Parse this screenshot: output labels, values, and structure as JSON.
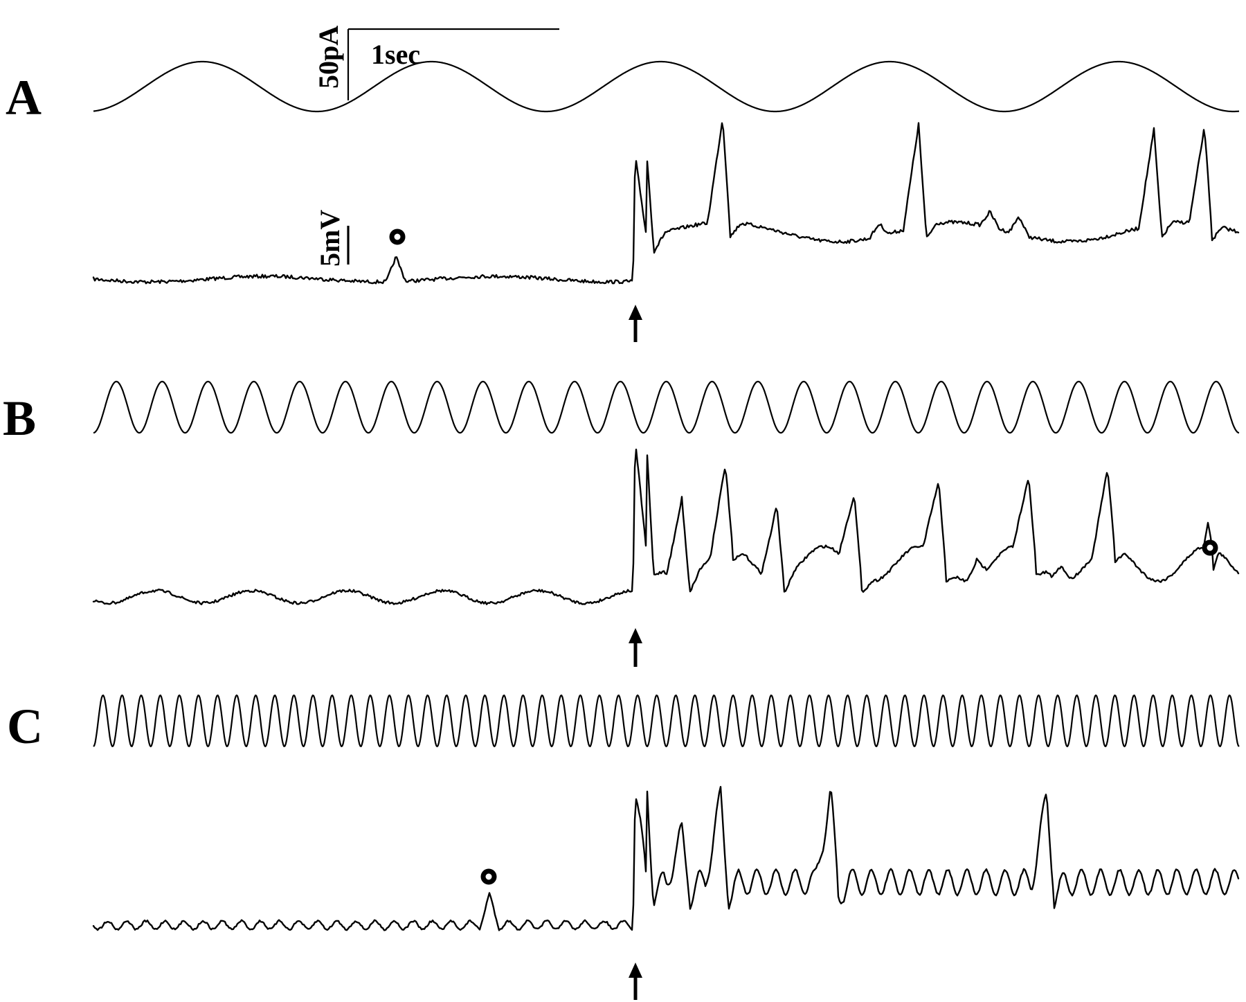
{
  "figure": {
    "panels": [
      {
        "letter": "A",
        "stim_cycles": 5
      },
      {
        "letter": "B",
        "stim_cycles": 25
      },
      {
        "letter": "C",
        "stim_cycles": 60
      }
    ],
    "scale_bars": {
      "current_label": "50pA",
      "time_label": "1sec",
      "voltage_label": "5mV"
    },
    "markers": {
      "arrow_symbol": "↑",
      "small_event_symbol": "o"
    }
  }
}
